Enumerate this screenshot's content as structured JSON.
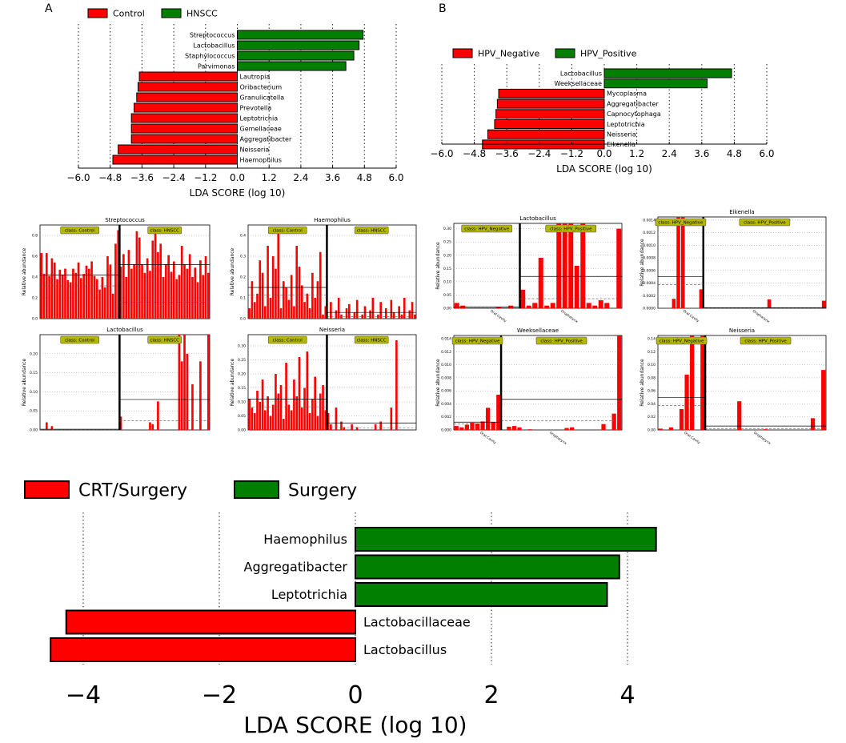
{
  "colors": {
    "red": "#ff0000",
    "green": "#007f00"
  },
  "chart_data": [
    {
      "id": "A",
      "type": "bar",
      "orientation": "horizontal",
      "panel_label": "A",
      "legend": [
        "Control",
        "HNSCC"
      ],
      "categories": [
        "Streptococcus",
        "Lactobacillus",
        "Staphylococcus",
        "Parvimonas",
        "Lautropia",
        "Oribacterium",
        "Granulicatella",
        "Prevotella",
        "Leptotrichia",
        "Gemellaceae",
        "Aggregatibacter",
        "Neisseria",
        "Haemophilus"
      ],
      "values": [
        4.75,
        4.6,
        4.4,
        4.1,
        -3.7,
        -3.75,
        -3.8,
        -3.9,
        -4.0,
        -4.0,
        -4.0,
        -4.5,
        -4.7
      ],
      "groups": [
        "HNSCC",
        "HNSCC",
        "HNSCC",
        "HNSCC",
        "Control",
        "Control",
        "Control",
        "Control",
        "Control",
        "Control",
        "Control",
        "Control",
        "Control"
      ],
      "xticks": [
        "−6.0",
        "−4.8",
        "−3.6",
        "−2.4",
        "−1.2",
        "0.0",
        "1.2",
        "2.4",
        "3.6",
        "4.8",
        "6.0"
      ],
      "xlim": [
        -6.0,
        6.0
      ],
      "xlabel": "LDA SCORE (log 10)"
    },
    {
      "id": "B",
      "type": "bar",
      "orientation": "horizontal",
      "panel_label": "B",
      "legend": [
        "HPV_Negative",
        "HPV_Positive"
      ],
      "categories": [
        "Lactobacillus",
        "Weeksellaceae",
        "Mycoplasma",
        "Aggregatibacter",
        "Capnocytophaga",
        "Leptotrichia",
        "Neisseria",
        "Eikenella"
      ],
      "values": [
        4.7,
        3.8,
        -3.9,
        -3.95,
        -4.0,
        -4.05,
        -4.3,
        -4.5
      ],
      "groups": [
        "HPV_Positive",
        "HPV_Positive",
        "HPV_Negative",
        "HPV_Negative",
        "HPV_Negative",
        "HPV_Negative",
        "HPV_Negative",
        "HPV_Negative"
      ],
      "xticks": [
        "−6.0",
        "−4.8",
        "−3.6",
        "−2.4",
        "−1.2",
        "0.0",
        "1.2",
        "2.4",
        "3.6",
        "4.8",
        "6.0"
      ],
      "xlim": [
        -6.0,
        6.0
      ],
      "xlabel": "LDA SCORE (log 10)"
    },
    {
      "id": "A1",
      "type": "bar",
      "title": "Streptococcus",
      "ylabel": "Relative abundance",
      "class_labels": [
        "class: Control",
        "class: HNSCC"
      ],
      "yticks": [
        "0.0",
        "0.2",
        "0.4",
        "0.6",
        "0.8"
      ],
      "ylim": [
        0,
        0.9
      ],
      "means": [
        0.42,
        0.52
      ],
      "values": [
        0.63,
        0.43,
        0.63,
        0.41,
        0.58,
        0.54,
        0.38,
        0.47,
        0.42,
        0.48,
        0.37,
        0.35,
        0.48,
        0.44,
        0.54,
        0.39,
        0.43,
        0.51,
        0.48,
        0.55,
        0.41,
        0.38,
        0.28,
        0.4,
        0.3,
        0.6,
        0.52,
        0.24,
        0.72,
        0.85,
        0.5,
        0.62,
        0.4,
        0.66,
        0.48,
        0.52,
        0.84,
        0.78,
        0.52,
        0.44,
        0.58,
        0.46,
        0.75,
        0.85,
        0.64,
        0.72,
        0.4,
        0.52,
        0.61,
        0.45,
        0.55,
        0.38,
        0.42,
        0.7,
        0.52,
        0.48,
        0.62,
        0.4,
        0.49,
        0.35,
        0.56,
        0.42,
        0.6,
        0.44
      ],
      "split_index": 30,
      "split_labels": []
    },
    {
      "id": "A2",
      "type": "bar",
      "title": "Haemophilus",
      "ylabel": "Relative abundance",
      "class_labels": [
        "class: Control",
        "class: HNSCC"
      ],
      "yticks": [
        "0.0",
        "0.1",
        "0.2",
        "0.3",
        "0.4"
      ],
      "ylim": [
        0,
        0.45
      ],
      "means": [
        0.15,
        0.03
      ],
      "values": [
        0.05,
        0.18,
        0.08,
        0.12,
        0.28,
        0.22,
        0.06,
        0.35,
        0.1,
        0.3,
        0.24,
        0.42,
        0.05,
        0.18,
        0.15,
        0.09,
        0.21,
        0.06,
        0.35,
        0.25,
        0.16,
        0.08,
        0.12,
        0.05,
        0.22,
        0.1,
        0.18,
        0.32,
        0.02,
        0.06,
        0.0,
        0.08,
        0.0,
        0.04,
        0.1,
        0.02,
        0.0,
        0.05,
        0.07,
        0.0,
        0.03,
        0.09,
        0.0,
        0.02,
        0.06,
        0.0,
        0.04,
        0.1,
        0.0,
        0.02,
        0.08,
        0.0,
        0.05,
        0.0,
        0.09,
        0.03,
        0.0,
        0.06,
        0.02,
        0.1,
        0.0,
        0.04,
        0.08,
        0.02
      ],
      "split_index": 30,
      "split_labels": []
    },
    {
      "id": "A3",
      "type": "bar",
      "title": "Lactobacillus",
      "ylabel": "Relative abundance",
      "class_labels": [
        "class: Control",
        "class: HNSCC"
      ],
      "yticks": [
        "0.00",
        "0.05",
        "0.10",
        "0.15",
        "0.20"
      ],
      "ylim": [
        0,
        0.25
      ],
      "means": [
        0.002,
        0.08
      ],
      "values": [
        0.0,
        0.0,
        0.02,
        0.0,
        0.01,
        0.0,
        0.0,
        0.0,
        0.0,
        0.0,
        0.0,
        0.0,
        0.0,
        0.0,
        0.0,
        0.0,
        0.0,
        0.0,
        0.0,
        0.0,
        0.0,
        0.0,
        0.0,
        0.0,
        0.0,
        0.0,
        0.0,
        0.0,
        0.0,
        0.0,
        0.035,
        0.0,
        0.0,
        0.0,
        0.0,
        0.0,
        0.0,
        0.0,
        0.0,
        0.0,
        0.0,
        0.02,
        0.015,
        0.0,
        0.075,
        0.0,
        0.0,
        0.0,
        0.0,
        0.0,
        0.0,
        0.0,
        0.25,
        0.18,
        0.25,
        0.2,
        0.0,
        0.12,
        0.0,
        0.0,
        0.18,
        0.0,
        0.0,
        0.25
      ],
      "split_index": 30,
      "split_labels": []
    },
    {
      "id": "A4",
      "type": "bar",
      "title": "Neisseria",
      "ylabel": "Relative abundance",
      "class_labels": [
        "class: Control",
        "class: HNSCC"
      ],
      "yticks": [
        "0.00",
        "0.05",
        "0.10",
        "0.15",
        "0.20",
        "0.25",
        "0.30"
      ],
      "ylim": [
        0,
        0.34
      ],
      "means": [
        0.11,
        0.025
      ],
      "values": [
        0.11,
        0.08,
        0.06,
        0.14,
        0.1,
        0.18,
        0.07,
        0.12,
        0.05,
        0.09,
        0.2,
        0.13,
        0.16,
        0.04,
        0.24,
        0.09,
        0.07,
        0.18,
        0.12,
        0.26,
        0.08,
        0.15,
        0.28,
        0.06,
        0.11,
        0.19,
        0.05,
        0.13,
        0.16,
        0.07,
        0.06,
        0.02,
        0.0,
        0.08,
        0.0,
        0.03,
        0.01,
        0.0,
        0.0,
        0.02,
        0.0,
        0.01,
        0.0,
        0.0,
        0.0,
        0.0,
        0.0,
        0.0,
        0.02,
        0.0,
        0.03,
        0.0,
        0.0,
        0.0,
        0.08,
        0.0,
        0.32,
        0.0,
        0.0,
        0.0,
        0.0,
        0.0,
        0.0,
        0.0
      ],
      "split_index": 30,
      "split_labels": []
    },
    {
      "id": "B1",
      "type": "bar",
      "title": "Lactobacillus",
      "ylabel": "Relative abundance",
      "class_labels": [
        "class: HPV_Negative",
        "class: HPV_Positive"
      ],
      "yticks": [
        "0.00",
        "0.05",
        "0.10",
        "0.15",
        "0.20",
        "0.25",
        "0.30"
      ],
      "ylim": [
        0,
        0.32
      ],
      "means": [
        0.005,
        0.12
      ],
      "values": [
        0.02,
        0.01,
        0.0,
        0.0,
        0.0,
        0.0,
        0.0,
        0.005,
        0.0,
        0.01,
        0.0,
        0.07,
        0.01,
        0.02,
        0.19,
        0.01,
        0.02,
        0.32,
        0.32,
        0.32,
        0.16,
        0.32,
        0.02,
        0.01,
        0.03,
        0.02,
        0.0,
        0.3
      ],
      "split_index": 11,
      "split_labels": [
        "Oral Cavity",
        "Oropharynx"
      ]
    },
    {
      "id": "B2",
      "type": "bar",
      "title": "Eikenella",
      "ylabel": "Relative abundance",
      "class_labels": [
        "class: HPV_Negative",
        "class: HPV_Positive"
      ],
      "yticks": [
        "0.0000",
        "0.0002",
        "0.0004",
        "0.0006",
        "0.0008",
        "0.0010",
        "0.0012",
        "0.0014"
      ],
      "ylim": [
        0,
        0.00145
      ],
      "means": [
        0.0005,
        1e-05
      ],
      "values": [
        0.0,
        0.0,
        0.0,
        0.00015,
        0.00145,
        0.00145,
        0.0,
        0.0,
        0.0,
        0.0003,
        0.0,
        0.0,
        0.0,
        0.0,
        0.0,
        0.0,
        0.0,
        0.0,
        0.0,
        0.0,
        0.0,
        0.0,
        0.0,
        0.0,
        0.00014,
        0.0,
        0.0,
        0.0,
        0.0,
        0.0,
        0.0,
        0.0,
        0.0,
        0.0,
        0.0,
        0.0,
        0.00012
      ],
      "split_index": 10,
      "split_labels": [
        "Oral Cavity",
        "Oropharynx"
      ]
    },
    {
      "id": "B3",
      "type": "bar",
      "title": "Weeksellaceae",
      "ylabel": "Relative abundance",
      "class_labels": [
        "class: HPV_Negative",
        "class: HPV_Positive"
      ],
      "yticks": [
        "0.000",
        "0.002",
        "0.004",
        "0.006",
        "0.008",
        "0.010",
        "0.012",
        "0.014"
      ],
      "ylim": [
        0,
        0.0145
      ],
      "means": [
        0.0012,
        0.0047
      ],
      "values": [
        0.0006,
        0.0004,
        0.0008,
        0.0011,
        0.001,
        0.0013,
        0.0034,
        0.0012,
        0.0054,
        0.0,
        0.0005,
        0.0006,
        0.0004,
        0.0,
        0.0001,
        0.0,
        0.0,
        0.0,
        0.0,
        0.0,
        0.0,
        0.0003,
        0.0004,
        0.0,
        0.0,
        0.0,
        0.0,
        0.0,
        0.0009,
        0.0,
        0.0025,
        0.0145
      ],
      "split_index": 9,
      "split_labels": [
        "Oral Cavity",
        "Oropharynx"
      ]
    },
    {
      "id": "B4",
      "type": "bar",
      "title": "Neisseria",
      "ylabel": "Relative abundance",
      "class_labels": [
        "class: HPV_Negative",
        "class: HPV_Positive"
      ],
      "yticks": [
        "0.00",
        "0.02",
        "0.04",
        "0.06",
        "0.08",
        "0.10",
        "0.12",
        "0.14"
      ],
      "ylim": [
        0,
        0.145
      ],
      "means": [
        0.05,
        0.006
      ],
      "values": [
        0.002,
        0.0,
        0.004,
        0.0,
        0.032,
        0.085,
        0.145,
        0.0,
        0.145,
        0.0,
        0.0,
        0.0,
        0.0,
        0.0,
        0.0,
        0.044,
        0.0,
        0.0,
        0.0,
        0.0,
        0.001,
        0.0,
        0.0,
        0.0,
        0.0,
        0.0,
        0.0,
        0.0,
        0.0,
        0.018,
        0.0,
        0.092
      ],
      "split_index": 9,
      "split_labels": [
        "Oral Cavity",
        "Oropharynx"
      ]
    },
    {
      "id": "C",
      "type": "bar",
      "orientation": "horizontal",
      "legend": [
        "CRT/Surgery",
        "Surgery"
      ],
      "categories": [
        "Haemophilus",
        "Aggregatibacter",
        "Leptotrichia",
        "Lactobacillaceae",
        "Lactobacillus"
      ],
      "values": [
        4.42,
        3.88,
        3.7,
        -4.25,
        -4.48
      ],
      "groups": [
        "Surgery",
        "Surgery",
        "Surgery",
        "CRT/Surgery",
        "CRT/Surgery"
      ],
      "xticks": [
        "−4",
        "−2",
        "0",
        "2",
        "4"
      ],
      "xlim": [
        -5.0,
        5.0
      ],
      "xlabel": "LDA SCORE (log 10)"
    }
  ]
}
